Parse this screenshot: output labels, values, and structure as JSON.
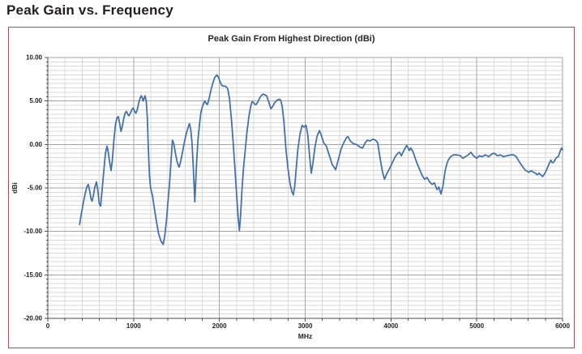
{
  "page": {
    "title": "Peak Gain vs. Frequency"
  },
  "chart": {
    "title": "Peak Gain From Highest Direction (dBi)",
    "colors": {
      "line": "#4472a8",
      "minor_grid": "#d9d9d9",
      "major_grid": "#a6a6a6",
      "axis": "#4d4d4d",
      "tick_text": "#1f1f1f",
      "frame_border": "#96575b"
    }
  },
  "chart_data": {
    "type": "line",
    "title": "Peak Gain From Highest Direction (dBi)",
    "xlabel": "MHz",
    "ylabel": "dBi",
    "xlim": [
      0,
      6000
    ],
    "ylim": [
      -20,
      10
    ],
    "x_major_step": 1000,
    "x_minor_step": 200,
    "y_major_step": 5,
    "y_minor_step": 0.5,
    "x_tick_labels": [
      "0",
      "1000",
      "2000",
      "3000",
      "4000",
      "5000",
      "6000"
    ],
    "y_tick_labels": [
      "10.00",
      "5.00",
      "0.00",
      "-5.00",
      "-10.00",
      "-15.00",
      "-20.00"
    ],
    "grid": true,
    "legend": "none",
    "series": [
      {
        "name": "Peak Gain From Highest Direction",
        "points": [
          [
            370,
            -9.2
          ],
          [
            383,
            -8.4
          ],
          [
            400,
            -7.5
          ],
          [
            418,
            -6.5
          ],
          [
            438,
            -5.5
          ],
          [
            458,
            -4.8
          ],
          [
            472,
            -4.6
          ],
          [
            488,
            -5.3
          ],
          [
            505,
            -6.3
          ],
          [
            517,
            -6.5
          ],
          [
            530,
            -5.9
          ],
          [
            548,
            -4.9
          ],
          [
            567,
            -4.3
          ],
          [
            583,
            -5.3
          ],
          [
            600,
            -6.8
          ],
          [
            615,
            -7.1
          ],
          [
            632,
            -5.3
          ],
          [
            655,
            -2.8
          ],
          [
            672,
            -1.0
          ],
          [
            690,
            -0.2
          ],
          [
            705,
            -0.9
          ],
          [
            720,
            -2.0
          ],
          [
            737,
            -3.0
          ],
          [
            752,
            -1.8
          ],
          [
            770,
            0.5
          ],
          [
            790,
            2.4
          ],
          [
            808,
            3.1
          ],
          [
            822,
            3.2
          ],
          [
            837,
            2.4
          ],
          [
            853,
            1.5
          ],
          [
            868,
            2.1
          ],
          [
            885,
            3.0
          ],
          [
            900,
            3.6
          ],
          [
            917,
            3.8
          ],
          [
            930,
            3.5
          ],
          [
            945,
            3.3
          ],
          [
            962,
            3.6
          ],
          [
            980,
            4.0
          ],
          [
            995,
            4.2
          ],
          [
            1012,
            3.8
          ],
          [
            1027,
            3.6
          ],
          [
            1042,
            4.0
          ],
          [
            1060,
            4.8
          ],
          [
            1078,
            5.4
          ],
          [
            1090,
            5.6
          ],
          [
            1102,
            5.3
          ],
          [
            1112,
            5.0
          ],
          [
            1122,
            5.3
          ],
          [
            1133,
            5.6
          ],
          [
            1147,
            5.0
          ],
          [
            1160,
            3.0
          ],
          [
            1172,
            -0.5
          ],
          [
            1185,
            -3.6
          ],
          [
            1197,
            -4.9
          ],
          [
            1207,
            -5.4
          ],
          [
            1218,
            -5.8
          ],
          [
            1240,
            -7.2
          ],
          [
            1265,
            -8.8
          ],
          [
            1290,
            -10.2
          ],
          [
            1318,
            -11.1
          ],
          [
            1345,
            -11.5
          ],
          [
            1362,
            -10.6
          ],
          [
            1382,
            -8.8
          ],
          [
            1400,
            -6.6
          ],
          [
            1418,
            -4.6
          ],
          [
            1435,
            -2.0
          ],
          [
            1452,
            0.5
          ],
          [
            1468,
            0.1
          ],
          [
            1485,
            -0.9
          ],
          [
            1505,
            -1.9
          ],
          [
            1520,
            -2.4
          ],
          [
            1531,
            -2.6
          ],
          [
            1548,
            -2.0
          ],
          [
            1568,
            -1.0
          ],
          [
            1590,
            0.2
          ],
          [
            1615,
            1.3
          ],
          [
            1640,
            2.1
          ],
          [
            1651,
            2.4
          ],
          [
            1665,
            1.8
          ],
          [
            1680,
            0.3
          ],
          [
            1695,
            -2.5
          ],
          [
            1706,
            -5.0
          ],
          [
            1713,
            -6.6
          ],
          [
            1722,
            -4.8
          ],
          [
            1735,
            -2.0
          ],
          [
            1750,
            0.5
          ],
          [
            1768,
            2.3
          ],
          [
            1783,
            3.6
          ],
          [
            1800,
            4.3
          ],
          [
            1815,
            4.7
          ],
          [
            1830,
            5.0
          ],
          [
            1846,
            4.7
          ],
          [
            1861,
            4.6
          ],
          [
            1880,
            5.3
          ],
          [
            1900,
            6.2
          ],
          [
            1922,
            7.0
          ],
          [
            1945,
            7.7
          ],
          [
            1972,
            8.0
          ],
          [
            1990,
            7.7
          ],
          [
            2008,
            7.2
          ],
          [
            2028,
            6.8
          ],
          [
            2050,
            6.7
          ],
          [
            2072,
            6.7
          ],
          [
            2098,
            6.4
          ],
          [
            2118,
            5.2
          ],
          [
            2140,
            2.9
          ],
          [
            2160,
            0.3
          ],
          [
            2180,
            -2.6
          ],
          [
            2200,
            -5.6
          ],
          [
            2218,
            -8.3
          ],
          [
            2233,
            -9.9
          ],
          [
            2247,
            -8.2
          ],
          [
            2262,
            -5.4
          ],
          [
            2280,
            -2.8
          ],
          [
            2300,
            -0.8
          ],
          [
            2320,
            1.3
          ],
          [
            2345,
            3.3
          ],
          [
            2365,
            4.4
          ],
          [
            2381,
            4.9
          ],
          [
            2400,
            4.8
          ],
          [
            2415,
            4.6
          ],
          [
            2429,
            4.6
          ],
          [
            2448,
            4.9
          ],
          [
            2472,
            5.4
          ],
          [
            2495,
            5.7
          ],
          [
            2510,
            5.8
          ],
          [
            2530,
            5.7
          ],
          [
            2550,
            5.6
          ],
          [
            2575,
            4.9
          ],
          [
            2600,
            4.1
          ],
          [
            2622,
            4.4
          ],
          [
            2645,
            4.8
          ],
          [
            2672,
            5.1
          ],
          [
            2700,
            5.2
          ],
          [
            2715,
            5.1
          ],
          [
            2732,
            4.4
          ],
          [
            2752,
            2.6
          ],
          [
            2775,
            -0.5
          ],
          [
            2800,
            -2.8
          ],
          [
            2825,
            -4.6
          ],
          [
            2848,
            -5.5
          ],
          [
            2862,
            -5.8
          ],
          [
            2878,
            -4.8
          ],
          [
            2895,
            -2.8
          ],
          [
            2915,
            -0.5
          ],
          [
            2940,
            1.2
          ],
          [
            2964,
            2.2
          ],
          [
            2985,
            2.0
          ],
          [
            3010,
            2.2
          ],
          [
            3030,
            1.1
          ],
          [
            3052,
            -1.4
          ],
          [
            3071,
            -3.3
          ],
          [
            3090,
            -2.2
          ],
          [
            3112,
            -0.4
          ],
          [
            3140,
            1.0
          ],
          [
            3166,
            1.6
          ],
          [
            3190,
            1.0
          ],
          [
            3215,
            0.2
          ],
          [
            3247,
            -0.2
          ],
          [
            3280,
            -1.2
          ],
          [
            3315,
            -2.3
          ],
          [
            3355,
            -2.9
          ],
          [
            3385,
            -1.8
          ],
          [
            3420,
            -0.5
          ],
          [
            3450,
            0.2
          ],
          [
            3483,
            0.8
          ],
          [
            3500,
            0.9
          ],
          [
            3525,
            0.4
          ],
          [
            3560,
            0.1
          ],
          [
            3595,
            0.0
          ],
          [
            3640,
            -0.3
          ],
          [
            3670,
            -0.4
          ],
          [
            3700,
            0.2
          ],
          [
            3725,
            0.5
          ],
          [
            3755,
            0.4
          ],
          [
            3790,
            0.6
          ],
          [
            3820,
            0.5
          ],
          [
            3845,
            0.2
          ],
          [
            3877,
            -1.8
          ],
          [
            3900,
            -3.1
          ],
          [
            3924,
            -4.0
          ],
          [
            3950,
            -3.4
          ],
          [
            3987,
            -2.7
          ],
          [
            4020,
            -2.0
          ],
          [
            4050,
            -1.4
          ],
          [
            4080,
            -1.0
          ],
          [
            4100,
            -0.9
          ],
          [
            4122,
            -1.3
          ],
          [
            4150,
            -0.7
          ],
          [
            4183,
            -0.1
          ],
          [
            4200,
            -0.4
          ],
          [
            4214,
            -0.7
          ],
          [
            4230,
            -0.4
          ],
          [
            4255,
            -0.8
          ],
          [
            4280,
            -1.5
          ],
          [
            4305,
            -2.2
          ],
          [
            4335,
            -2.9
          ],
          [
            4365,
            -3.6
          ],
          [
            4394,
            -4.0
          ],
          [
            4420,
            -3.8
          ],
          [
            4450,
            -4.3
          ],
          [
            4480,
            -4.6
          ],
          [
            4505,
            -4.4
          ],
          [
            4536,
            -5.2
          ],
          [
            4558,
            -4.9
          ],
          [
            4583,
            -5.7
          ],
          [
            4605,
            -4.8
          ],
          [
            4632,
            -3.0
          ],
          [
            4655,
            -2.1
          ],
          [
            4668,
            -1.8
          ],
          [
            4695,
            -1.4
          ],
          [
            4730,
            -1.2
          ],
          [
            4770,
            -1.2
          ],
          [
            4810,
            -1.3
          ],
          [
            4838,
            -1.6
          ],
          [
            4868,
            -1.4
          ],
          [
            4900,
            -1.2
          ],
          [
            4932,
            -0.9
          ],
          [
            4962,
            -1.3
          ],
          [
            4998,
            -1.6
          ],
          [
            5030,
            -1.3
          ],
          [
            5065,
            -1.4
          ],
          [
            5100,
            -1.2
          ],
          [
            5140,
            -1.4
          ],
          [
            5175,
            -1.1
          ],
          [
            5205,
            -1.0
          ],
          [
            5240,
            -1.3
          ],
          [
            5275,
            -1.2
          ],
          [
            5310,
            -1.4
          ],
          [
            5350,
            -1.3
          ],
          [
            5395,
            -1.2
          ],
          [
            5430,
            -1.2
          ],
          [
            5460,
            -1.4
          ],
          [
            5490,
            -1.9
          ],
          [
            5517,
            -2.3
          ],
          [
            5545,
            -2.7
          ],
          [
            5570,
            -3.0
          ],
          [
            5592,
            -3.1
          ],
          [
            5611,
            -3.2
          ],
          [
            5635,
            -3.0
          ],
          [
            5660,
            -3.2
          ],
          [
            5685,
            -3.3
          ],
          [
            5706,
            -3.5
          ],
          [
            5725,
            -3.3
          ],
          [
            5748,
            -3.5
          ],
          [
            5768,
            -3.7
          ],
          [
            5795,
            -3.3
          ],
          [
            5820,
            -2.8
          ],
          [
            5840,
            -2.3
          ],
          [
            5863,
            -1.8
          ],
          [
            5882,
            -2.1
          ],
          [
            5900,
            -2.0
          ],
          [
            5915,
            -1.7
          ],
          [
            5930,
            -1.5
          ],
          [
            5950,
            -1.4
          ],
          [
            5972,
            -0.8
          ],
          [
            5990,
            -0.4
          ],
          [
            6000,
            -0.6
          ]
        ]
      }
    ]
  }
}
